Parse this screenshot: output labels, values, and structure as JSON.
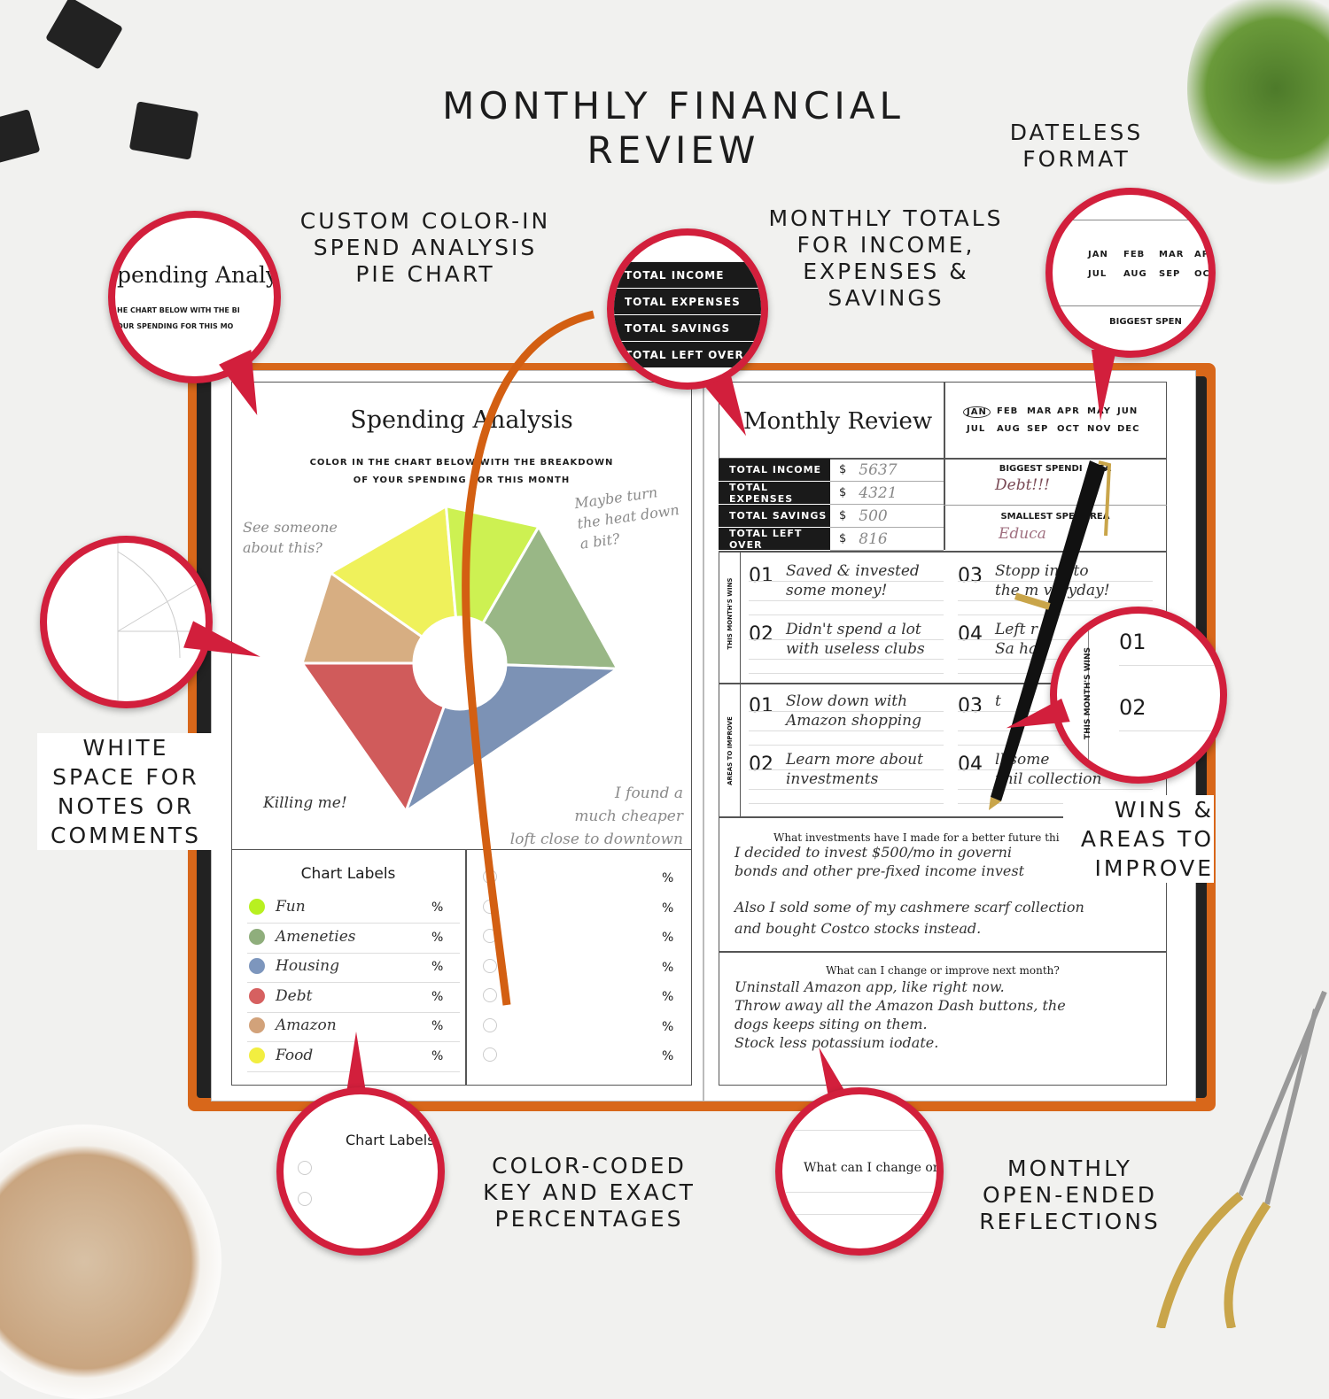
{
  "headline": {
    "line1": "MONTHLY FINANCIAL",
    "line2": "REVIEW"
  },
  "features": {
    "pie": [
      "CUSTOM COLOR-IN",
      "SPEND ANALYSIS",
      "PIE CHART"
    ],
    "totals": [
      "MONTHLY TOTALS",
      "FOR INCOME,",
      "EXPENSES &",
      "SAVINGS"
    ],
    "dateless": [
      "DATELESS",
      "FORMAT"
    ],
    "notes": [
      "WHITE",
      "SPACE FOR",
      "NOTES OR",
      "COMMENTS"
    ],
    "wins": [
      "WINS &",
      "AREAS TO",
      "IMPROVE"
    ],
    "key": [
      "COLOR-CODED",
      "KEY AND EXACT",
      "PERCENTAGES"
    ],
    "reflections": [
      "MONTHLY",
      "OPEN-ENDED",
      "REFLECTIONS"
    ]
  },
  "left_page": {
    "title": "Spending Analysis",
    "instructions": [
      "COLOR IN THE CHART BELOW WITH THE BREAKDOWN",
      "OF YOUR SPENDING FOR THIS MONTH"
    ],
    "notes": {
      "tan": [
        "See someone",
        "about this?"
      ],
      "green": [
        "Maybe turn",
        "the heat down",
        "a bit?"
      ],
      "red": "Killing me!",
      "blue": [
        "I found a",
        "much cheaper",
        "loft close to downtown"
      ]
    },
    "pie_colors": {
      "food": "#eef04a",
      "fun": "#c8f040",
      "amenities": "#8fb07a",
      "housing": "#6e87ad",
      "debt": "#cc4a4a",
      "amazon": "#d3a675"
    },
    "chart_labels_title": "Chart Labels",
    "labels": [
      {
        "name": "Fun",
        "color": "#b8f020",
        "unit": "%"
      },
      {
        "name": "Ameneties",
        "color": "#8fae7c",
        "unit": "%"
      },
      {
        "name": "Housing",
        "color": "#7d96bd",
        "unit": "%"
      },
      {
        "name": "Debt",
        "color": "#d66060",
        "unit": "%"
      },
      {
        "name": "Amazon",
        "color": "#d2a27a",
        "unit": "%"
      },
      {
        "name": "Food",
        "color": "#f2ee40",
        "unit": "%"
      }
    ],
    "unit": "%"
  },
  "right_page": {
    "title": "Monthly Review",
    "months": [
      "JAN",
      "FEB",
      "MAR",
      "APR",
      "MAY",
      "JUN",
      "JUL",
      "AUG",
      "SEP",
      "OCT",
      "NOV",
      "DEC"
    ],
    "selected_month": "JAN",
    "totals": [
      {
        "label": "TOTAL INCOME",
        "currency": "$",
        "value": "5637"
      },
      {
        "label": "TOTAL EXPENSES",
        "currency": "$",
        "value": "4321"
      },
      {
        "label": "TOTAL SAVINGS",
        "currency": "$",
        "value": "500"
      },
      {
        "label": "TOTAL LEFT OVER",
        "currency": "$",
        "value": "816"
      }
    ],
    "biggest_label": "BIGGEST SPENDI   REA",
    "biggest_value": "Debt!!!",
    "smallest_label": "SMALLEST SPE     REA",
    "smallest_value": "Educa",
    "wins_label": "THIS MONTH'S WINS",
    "wins": [
      {
        "n": "01",
        "text": [
          "Saved & invested",
          "some money!"
        ]
      },
      {
        "n": "02",
        "text": [
          "Didn't spend a lot",
          "with useless clubs"
        ]
      },
      {
        "n": "03",
        "text": [
          "Stopp    ing to",
          "the m     veryday!"
        ]
      },
      {
        "n": "04",
        "text": [
          "Left    r n",
          "Sa     ha"
        ]
      }
    ],
    "improve_label": "AREAS TO IMPROVE",
    "improve": [
      {
        "n": "01",
        "text": [
          "Slow down with",
          "Amazon shopping"
        ]
      },
      {
        "n": "02",
        "text": [
          "Learn more about",
          "investments"
        ]
      },
      {
        "n": "03",
        "text": [
          "  t",
          ""
        ]
      },
      {
        "n": "04",
        "text": [
          "ll some",
          "ynil collection"
        ]
      }
    ],
    "q1": "What investments have I made for a better future thi",
    "a1": [
      "I decided to invest $500/mo in governi",
      "bonds and other pre-fixed income invest",
      "Also I sold some of my cashmere scarf collection",
      "and bought Costco stocks instead."
    ],
    "q2": "What can I change or improve next month?",
    "a2": [
      "Uninstall Amazon app, like right now.",
      "Throw away all the Amazon Dash buttons, the",
      "dogs keeps siting on them.",
      "Stock less potassium iodate."
    ]
  },
  "zooms": {
    "pie": {
      "title": "pending Analys",
      "line1": "HE CHART BELOW WITH THE BI",
      "line2": "OUR SPENDING FOR THIS MO"
    },
    "totals": [
      "TOTAL INCOME",
      "TOTAL EXPENSES",
      "TOTAL SAVINGS",
      "TOTAL LEFT OVER"
    ],
    "months": {
      "row1": [
        "JAN",
        "FEB",
        "MAR",
        "AP"
      ],
      "row2": [
        "JUL",
        "AUG",
        "SEP",
        "OCT"
      ],
      "biggest": "BIGGEST SPEN"
    },
    "wins": {
      "label": "THIS MONTH'S WINS",
      "n1": "01",
      "n2": "02"
    },
    "labels": "Chart Labels",
    "reflect": "What can I change or"
  },
  "colors": {
    "callout": "#d21f3c",
    "cover": "#d8671a",
    "ribbon": "#d35f12"
  }
}
